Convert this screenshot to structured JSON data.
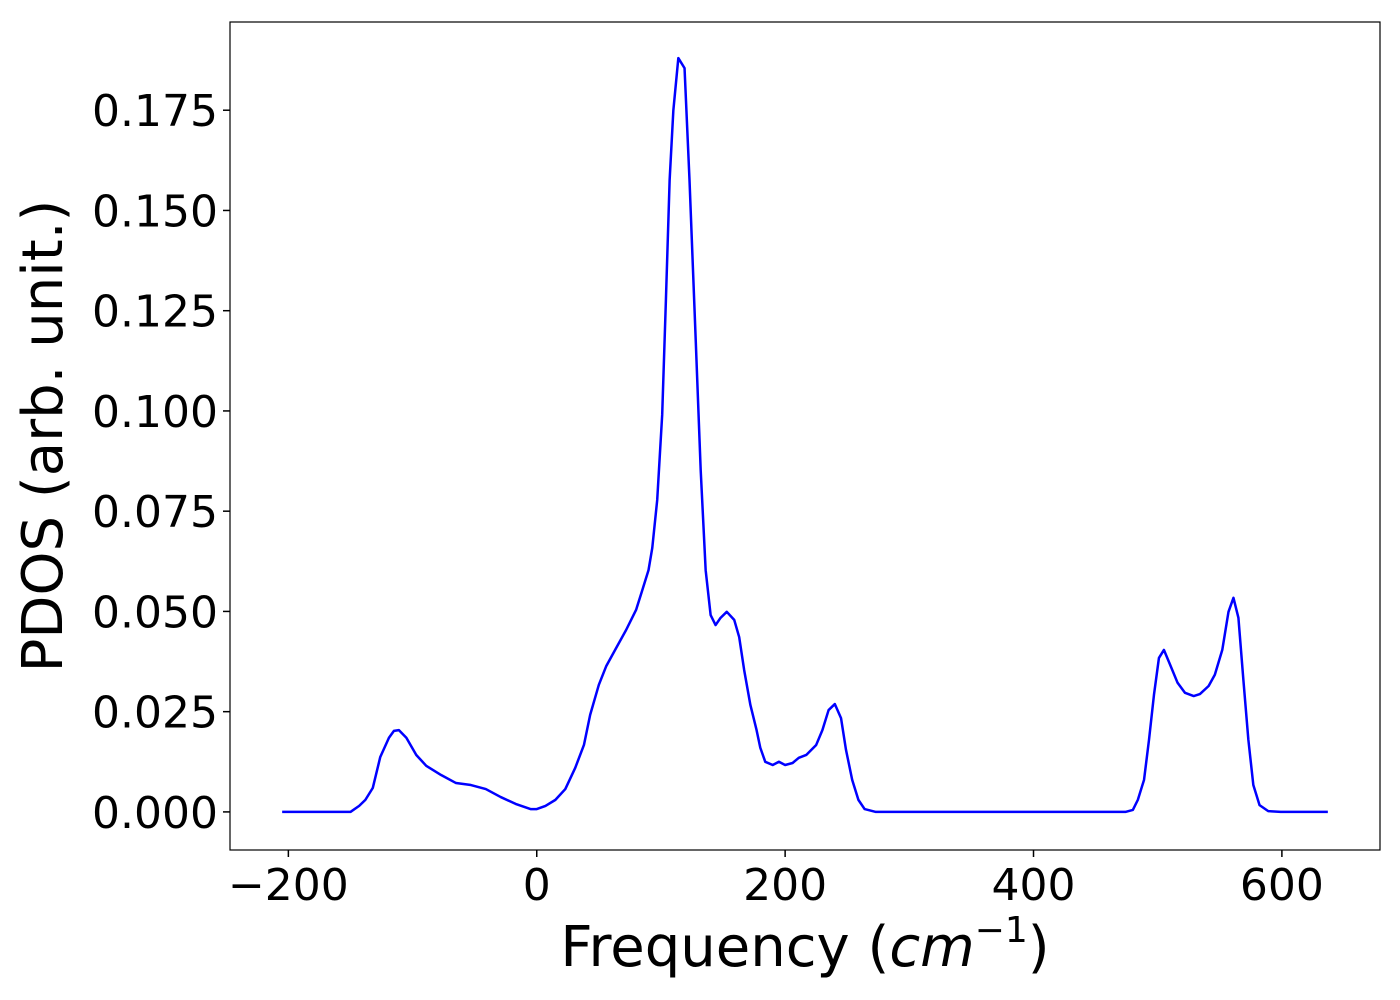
{
  "chart_data": {
    "type": "line",
    "x_label": [
      "Frequency (",
      "cm",
      "−1",
      ")"
    ],
    "y_label": "PDOS (arb. unit.)",
    "xlim": [
      -247,
      679
    ],
    "ylim": [
      -0.0095,
      0.197
    ],
    "xticks": [
      {
        "value": -200,
        "label": "−200"
      },
      0,
      200,
      400,
      600
    ],
    "yticks": [
      {
        "value": 0,
        "label": "0.000"
      },
      {
        "value": 0.025,
        "label": "0.025"
      },
      {
        "value": 0.05,
        "label": "0.050"
      },
      {
        "value": 0.075,
        "label": "0.075"
      },
      {
        "value": 0.1,
        "label": "0.100"
      },
      {
        "value": 0.125,
        "label": "0.125"
      },
      {
        "value": 0.15,
        "label": "0.150"
      },
      {
        "value": 0.175,
        "label": "0.175"
      }
    ],
    "grid": false,
    "x": [
      -205,
      -150,
      -143,
      -138,
      -132,
      -126,
      -119,
      -115,
      -111,
      -105,
      -97,
      -89,
      -77,
      -65,
      -53,
      -41,
      -29,
      -17,
      -5,
      0,
      7,
      15,
      23,
      31,
      38,
      43,
      50,
      56,
      64,
      72,
      80,
      85,
      90,
      93,
      97,
      101,
      104,
      107,
      110,
      114,
      119,
      123,
      128,
      132,
      136,
      140,
      144,
      148,
      153,
      159,
      163,
      167,
      172,
      177,
      180,
      184,
      190,
      195,
      200,
      206,
      211,
      217,
      225,
      230,
      235,
      240,
      245,
      249,
      254,
      259,
      264,
      273,
      474,
      480,
      484,
      489,
      493,
      497,
      501,
      505,
      510,
      516,
      522,
      529,
      534,
      541,
      546,
      552,
      557,
      561,
      565,
      569,
      573,
      577,
      582,
      589,
      599,
      637
    ],
    "series": [
      {
        "name": "PDOS",
        "color": "#0000ff",
        "values": [
          0,
          0,
          0.0015,
          0.003,
          0.006,
          0.0137,
          0.0185,
          0.0202,
          0.0204,
          0.0185,
          0.0142,
          0.0115,
          0.0092,
          0.0072,
          0.0067,
          0.0057,
          0.0037,
          0.002,
          0.0007,
          0.0007,
          0.0015,
          0.003,
          0.0057,
          0.011,
          0.0167,
          0.0242,
          0.0317,
          0.0364,
          0.0409,
          0.0454,
          0.0504,
          0.0553,
          0.0603,
          0.0658,
          0.0778,
          0.099,
          0.1277,
          0.1576,
          0.175,
          0.188,
          0.1855,
          0.1576,
          0.1177,
          0.0853,
          0.0603,
          0.0491,
          0.0466,
          0.0484,
          0.0499,
          0.0479,
          0.0436,
          0.0354,
          0.0267,
          0.0204,
          0.016,
          0.0125,
          0.0117,
          0.0125,
          0.0117,
          0.0122,
          0.0135,
          0.0142,
          0.0167,
          0.0204,
          0.0254,
          0.0269,
          0.0234,
          0.0155,
          0.008,
          0.003,
          0.0007,
          0,
          0,
          0.0005,
          0.003,
          0.008,
          0.018,
          0.0292,
          0.0384,
          0.0404,
          0.0367,
          0.0322,
          0.0297,
          0.0289,
          0.0294,
          0.0314,
          0.0342,
          0.0404,
          0.0499,
          0.0534,
          0.0484,
          0.0329,
          0.018,
          0.0067,
          0.0017,
          0.0002,
          0,
          0
        ]
      }
    ]
  }
}
